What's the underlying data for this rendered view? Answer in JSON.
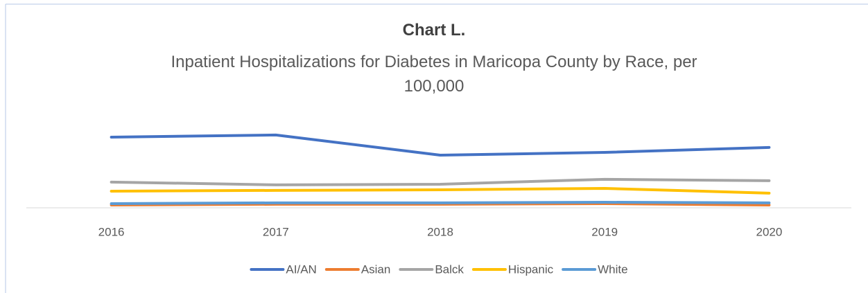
{
  "chart_data": {
    "type": "line",
    "title": "Chart L.",
    "subtitle": "Inpatient Hospitalizations for Diabetes in Maricopa County by Race, per 100,000",
    "categories": [
      "2016",
      "2017",
      "2018",
      "2019",
      "2020"
    ],
    "series": [
      {
        "name": "AI/AN",
        "color": "#4472c4",
        "values": [
          357,
          368,
          266,
          280,
          305
        ]
      },
      {
        "name": "Asian",
        "color": "#ed7d31",
        "values": [
          14,
          18,
          18,
          21,
          14
        ]
      },
      {
        "name": "Balck",
        "color": "#a5a5a5",
        "values": [
          130,
          116,
          119,
          144,
          137
        ]
      },
      {
        "name": "Hispanic",
        "color": "#ffc000",
        "values": [
          84,
          88,
          91,
          98,
          74
        ]
      },
      {
        "name": "White",
        "color": "#5b9bd5",
        "values": [
          21,
          25,
          25,
          28,
          25
        ]
      }
    ],
    "ylim": [
      0,
      490
    ],
    "legend": "bottom"
  }
}
